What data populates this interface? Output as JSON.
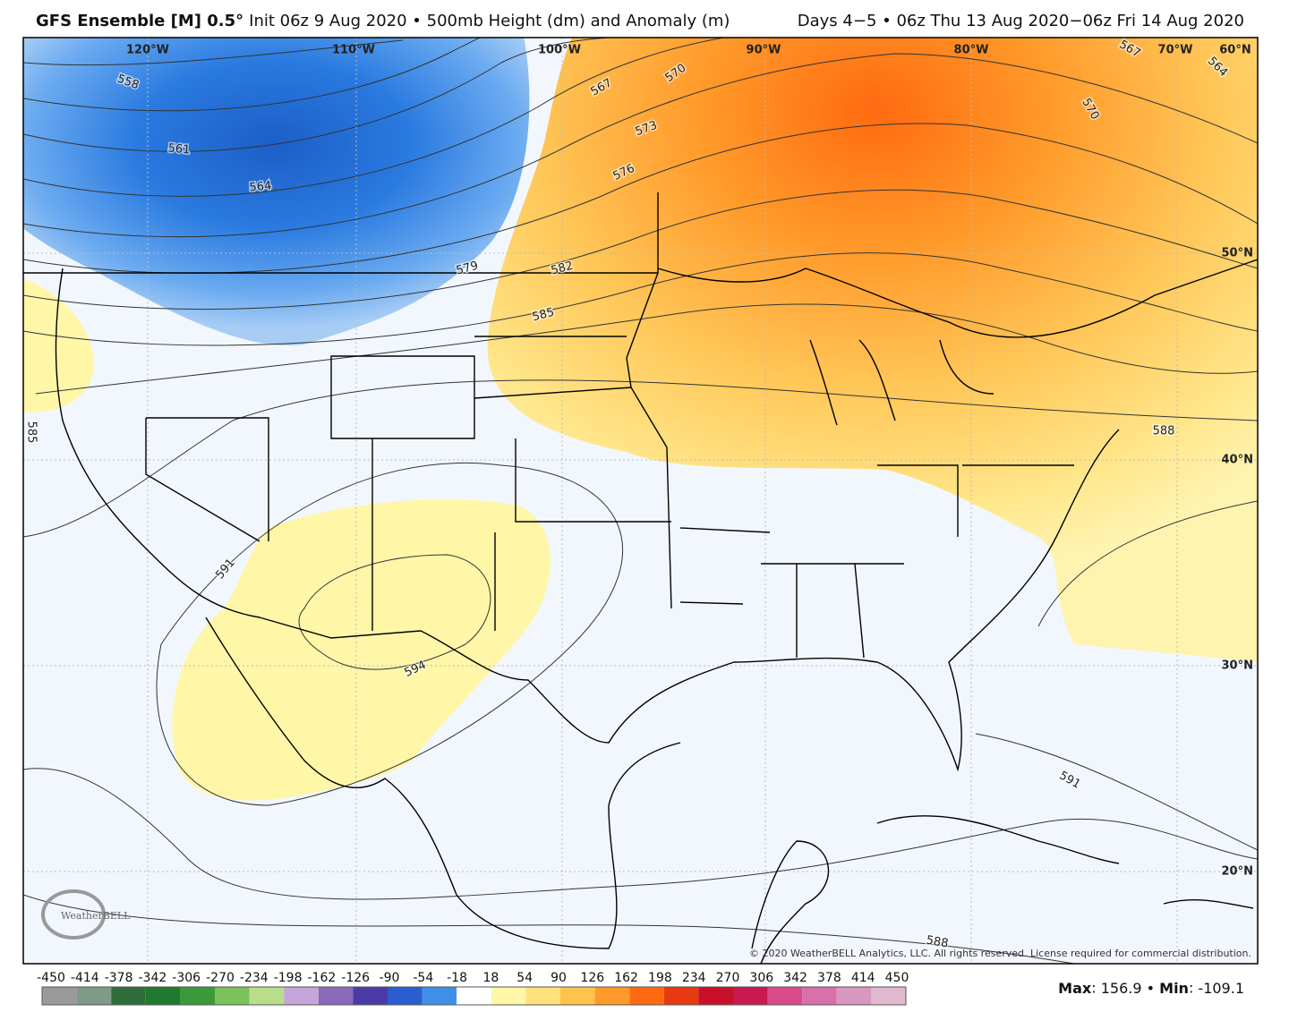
{
  "header": {
    "model": "GFS Ensemble [M] 0.5°",
    "init": "Init 06z 9 Aug 2020 • 500mb Height (dm) and Anomaly (m)",
    "valid": "Days 4−5 • 06z Thu 13 Aug 2020−06z Fri 14 Aug 2020"
  },
  "graticule": {
    "longitudes": [
      "120°W",
      "110°W",
      "100°W",
      "90°W",
      "80°W",
      "70°W",
      "60°N"
    ],
    "latitudes": [
      "50°N",
      "40°N",
      "30°N",
      "20°N"
    ]
  },
  "contour_labels": [
    558,
    561,
    564,
    567,
    570,
    573,
    576,
    579,
    582,
    585,
    585,
    591,
    594,
    591,
    588,
    567,
    564,
    570,
    588
  ],
  "logo": "WeatherBELL",
  "copyright": "© 2020 WeatherBELL Analytics, LLC. All rights reserved. License required for commercial distribution.",
  "colorbar": {
    "ticks": [
      -450,
      -414,
      -378,
      -342,
      -306,
      -270,
      -234,
      -198,
      -162,
      -126,
      -90,
      -54,
      -18,
      18,
      54,
      90,
      126,
      162,
      198,
      234,
      270,
      306,
      342,
      378,
      414,
      450
    ],
    "colors": [
      "#9a9a9a",
      "#7f9a86",
      "#2f6e3a",
      "#1f7a2f",
      "#3a9a3a",
      "#7cc25a",
      "#b8de8c",
      "#c5a6d8",
      "#8a6ab8",
      "#4a3aa8",
      "#2a5ed0",
      "#3f8fe8",
      "#ffffff",
      "#fff6a8",
      "#ffe27a",
      "#ffc24a",
      "#ff9a2a",
      "#ff6a10",
      "#e83a10",
      "#c8102a",
      "#c81a50",
      "#d84a8a",
      "#d870aa",
      "#d898c0",
      "#e0b8d0"
    ]
  },
  "stats": {
    "max_label": "Max",
    "max": 156.9,
    "separator": "•",
    "min_label": "Min",
    "min": -109.1
  }
}
